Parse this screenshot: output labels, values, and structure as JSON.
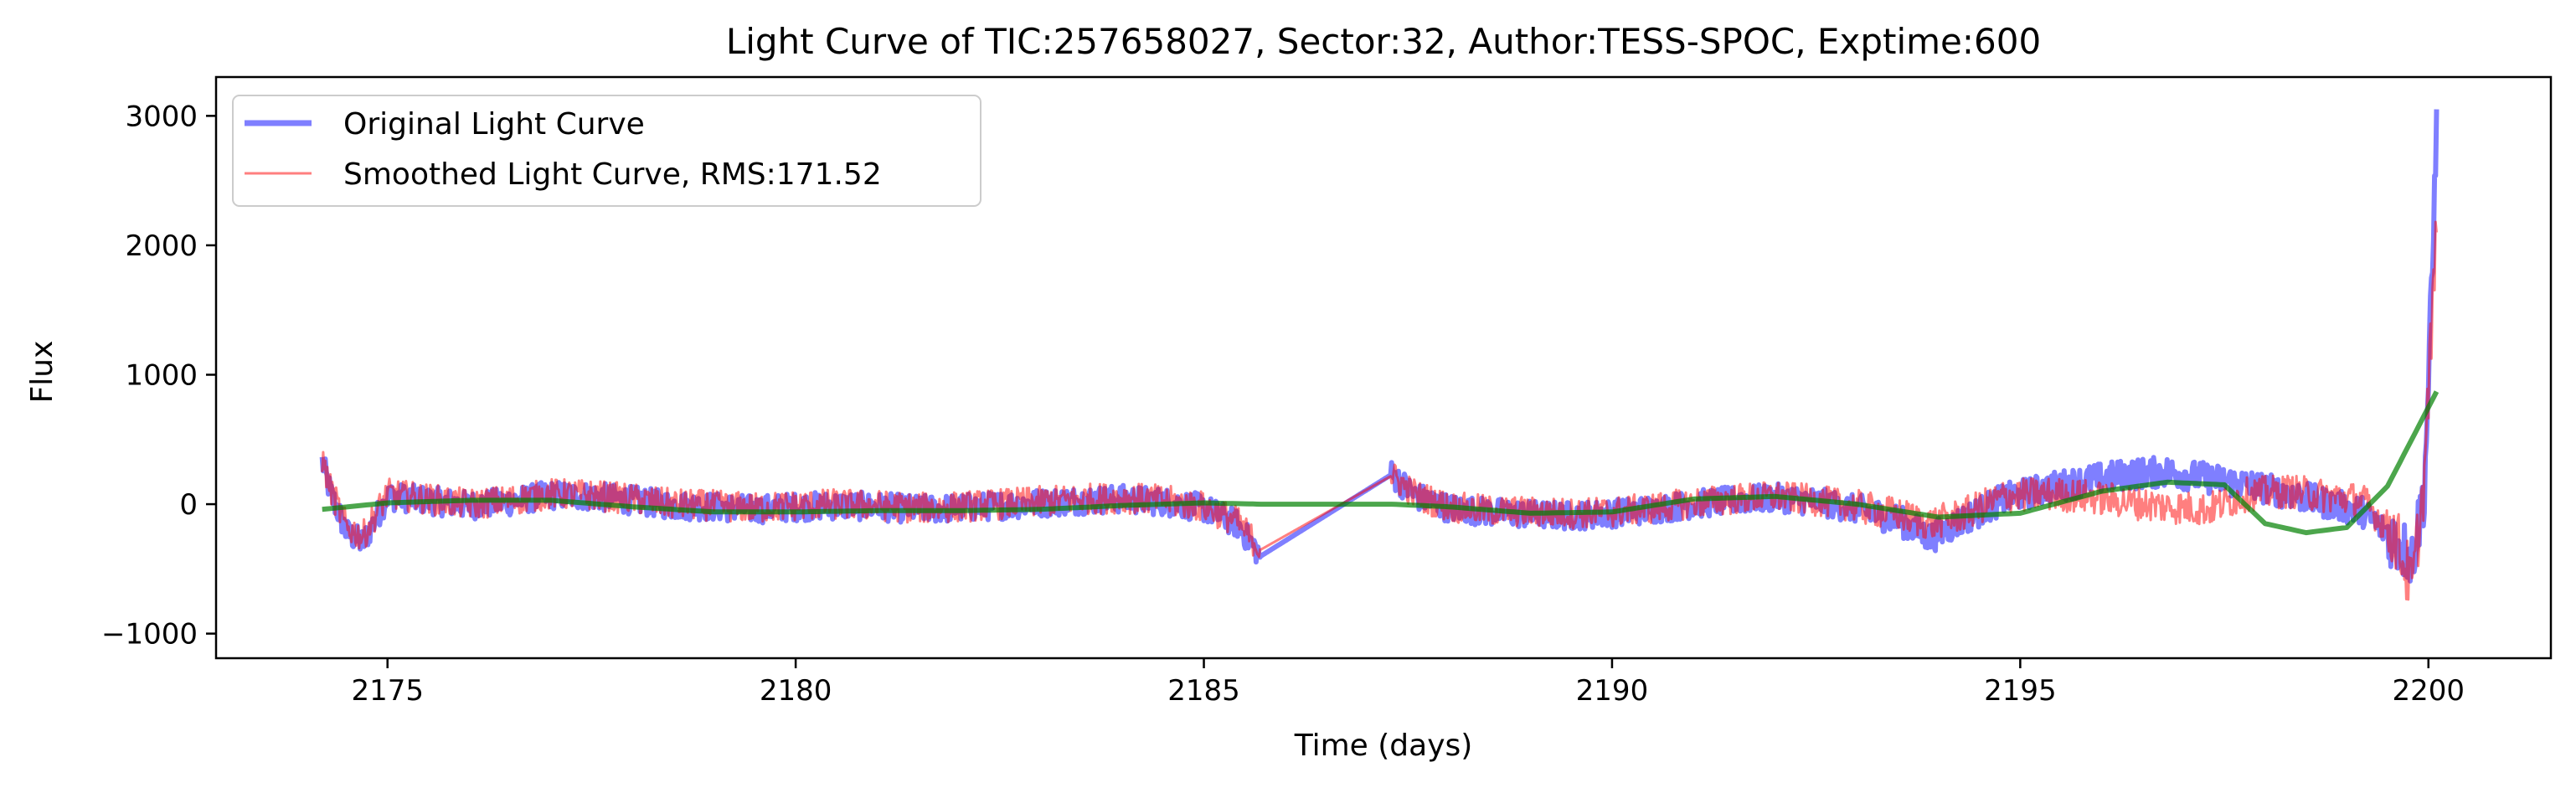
{
  "chart_data": {
    "type": "line",
    "title": "Light Curve of TIC:257658027, Sector:32, Author:TESS-SPOC, Exptime:600",
    "xlabel": "Time (days)",
    "ylabel": "Flux",
    "xlim": [
      2172.9,
      2201.5
    ],
    "ylim": [
      -1190,
      3300
    ],
    "xticks": [
      2175,
      2180,
      2185,
      2190,
      2195,
      2200
    ],
    "yticks": [
      -1000,
      0,
      1000,
      2000,
      3000
    ],
    "xtick_labels": [
      "2175",
      "2180",
      "2185",
      "2190",
      "2195",
      "2200"
    ],
    "ytick_labels": [
      "−1000",
      "0",
      "1000",
      "2000",
      "3000"
    ],
    "grid": false,
    "legend_position": "top-left",
    "series": [
      {
        "name": "Original Light Curve",
        "color": "#0000ff",
        "alpha": 0.5,
        "x": [
          2174.2,
          2174.3,
          2174.5,
          2174.7,
          2175.0,
          2175.5,
          2176.0,
          2176.5,
          2177.0,
          2177.5,
          2178.0,
          2178.5,
          2179.0,
          2179.5,
          2180.0,
          2180.5,
          2181.0,
          2181.5,
          2182.0,
          2182.5,
          2183.0,
          2183.5,
          2184.0,
          2184.5,
          2185.0,
          2185.4,
          2185.7,
          2187.3,
          2187.6,
          2188.0,
          2188.5,
          2189.0,
          2189.5,
          2190.0,
          2190.5,
          2191.0,
          2191.5,
          2192.0,
          2192.5,
          2193.0,
          2193.5,
          2193.9,
          2194.3,
          2194.8,
          2195.3,
          2195.8,
          2196.3,
          2196.8,
          2197.3,
          2197.8,
          2198.3,
          2198.8,
          2199.2,
          2199.6,
          2199.8,
          2199.95,
          2200.05,
          2200.1
        ],
        "y": [
          330,
          90,
          -220,
          -300,
          60,
          30,
          -10,
          20,
          70,
          60,
          30,
          -10,
          -20,
          -40,
          -20,
          -10,
          -20,
          -40,
          -30,
          -10,
          10,
          30,
          40,
          20,
          -30,
          -150,
          -400,
          230,
          60,
          -30,
          -60,
          -80,
          -90,
          -70,
          -40,
          0,
          30,
          50,
          20,
          -40,
          -120,
          -260,
          -120,
          40,
          120,
          180,
          230,
          250,
          200,
          150,
          80,
          0,
          -60,
          -280,
          -420,
          100,
          1800,
          3050
        ]
      },
      {
        "name": "Smoothed Light Curve, RMS:171.52",
        "color": "#ff0000",
        "alpha": 0.5,
        "x": [
          2174.2,
          2174.3,
          2174.5,
          2174.7,
          2175.0,
          2175.5,
          2176.0,
          2176.5,
          2177.0,
          2177.5,
          2178.0,
          2178.5,
          2179.0,
          2179.5,
          2180.0,
          2180.5,
          2181.0,
          2181.5,
          2182.0,
          2182.5,
          2183.0,
          2183.5,
          2184.0,
          2184.5,
          2185.0,
          2185.4,
          2185.7,
          2187.3,
          2187.6,
          2188.0,
          2188.5,
          2189.0,
          2189.5,
          2190.0,
          2190.5,
          2191.0,
          2191.5,
          2192.0,
          2192.5,
          2193.0,
          2193.5,
          2193.9,
          2194.3,
          2194.8,
          2195.3,
          2195.8,
          2196.3,
          2196.8,
          2197.3,
          2197.8,
          2198.3,
          2198.8,
          2199.2,
          2199.6,
          2199.8,
          2199.95,
          2200.05,
          2200.1
        ],
        "y": [
          340,
          120,
          -180,
          -250,
          80,
          40,
          0,
          30,
          80,
          70,
          40,
          0,
          -10,
          -30,
          -10,
          0,
          -10,
          -30,
          -20,
          0,
          20,
          40,
          50,
          30,
          -20,
          -130,
          -350,
          220,
          70,
          -20,
          -50,
          -60,
          -70,
          -60,
          -30,
          10,
          40,
          60,
          30,
          -20,
          -80,
          -150,
          -80,
          60,
          80,
          60,
          20,
          -20,
          -40,
          80,
          100,
          60,
          30,
          -250,
          -650,
          200,
          1500,
          2100
        ]
      },
      {
        "name": "",
        "color": "#008000",
        "alpha": 0.7,
        "x": [
          2174.2,
          2175.0,
          2176.0,
          2177.0,
          2178.0,
          2179.0,
          2180.0,
          2181.0,
          2182.0,
          2183.0,
          2184.0,
          2185.0,
          2185.7,
          2186.5,
          2187.3,
          2188.0,
          2189.0,
          2190.0,
          2191.0,
          2192.0,
          2193.0,
          2194.0,
          2195.0,
          2196.0,
          2196.8,
          2197.5,
          2198.0,
          2198.5,
          2199.0,
          2199.5,
          2200.1
        ],
        "y": [
          -40,
          10,
          30,
          30,
          -20,
          -60,
          -60,
          -50,
          -50,
          -40,
          -10,
          10,
          0,
          0,
          0,
          -20,
          -70,
          -60,
          40,
          60,
          0,
          -100,
          -70,
          100,
          170,
          150,
          -150,
          -220,
          -180,
          140,
          870
        ]
      }
    ],
    "legend_entries": [
      {
        "label": "Original Light Curve",
        "color": "#0000ff",
        "alpha": 0.5,
        "style": "thick"
      },
      {
        "label": "Smoothed Light Curve, RMS:171.52",
        "color": "#ff0000",
        "alpha": 0.5,
        "style": "thin"
      }
    ]
  }
}
